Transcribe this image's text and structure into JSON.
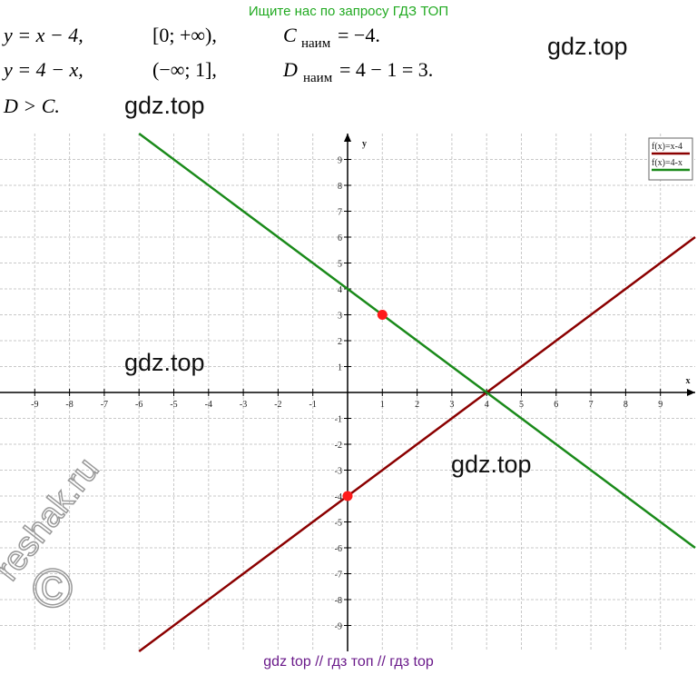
{
  "header": {
    "top_note": "Ищите нас по запросу ГДЗ ТОП",
    "rows": [
      {
        "func": "y = x − 4,",
        "range": "[0; +∞),",
        "letter": "C",
        "sub": "наим",
        "result": "= −4."
      },
      {
        "func": "y = 4 − x,",
        "range": "(−∞; 1],",
        "letter": "D",
        "sub": "наим",
        "result": "= 4 − 1 = 3."
      }
    ],
    "conclusion": "D > C."
  },
  "watermarks": [
    "gdz.top",
    "gdz.top",
    "gdz.top",
    "gdz.top",
    "reshak.ru",
    "©"
  ],
  "footer": "gdz top  //  гдз топ  //  гдз top",
  "chart_data": {
    "type": "line",
    "x_label": "x",
    "y_label": "y",
    "x": [
      -6,
      0,
      1,
      4,
      10
    ],
    "series": [
      {
        "name": "f(x)=x-4",
        "color": "#8b0000",
        "values": [
          -10,
          -4,
          -3,
          0,
          6
        ]
      },
      {
        "name": "f(x)=4-x",
        "color": "#1a8a1a",
        "values": [
          10,
          4,
          3,
          0,
          -6
        ]
      }
    ],
    "points": [
      {
        "x": 1,
        "y": 3,
        "color": "#ff1a1a"
      },
      {
        "x": 0,
        "y": -4,
        "color": "#ff1a1a"
      }
    ],
    "xlim": [
      -10,
      10
    ],
    "ylim": [
      -10,
      10
    ],
    "xticks": [
      -9,
      -8,
      -7,
      -6,
      -5,
      -4,
      -3,
      -2,
      -1,
      1,
      2,
      3,
      4,
      5,
      6,
      7,
      8,
      9
    ],
    "yticks": [
      -9,
      -8,
      -7,
      -6,
      -5,
      -4,
      -3,
      -2,
      -1,
      1,
      2,
      3,
      4,
      5,
      6,
      7,
      8,
      9
    ],
    "grid": true,
    "legend": "upper right"
  }
}
